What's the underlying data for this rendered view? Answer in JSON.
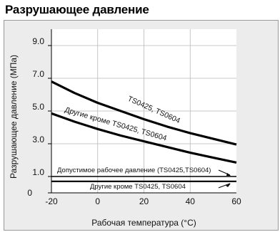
{
  "title": "Разрушающее давление",
  "chart_data": {
    "type": "line",
    "xlabel": "Рабочая температура (°C)",
    "ylabel": "Разрушающее давление (МПа)",
    "xlim": [
      -20,
      60
    ],
    "ylim": [
      0,
      10
    ],
    "x_ticks": [
      -20,
      0,
      20,
      40,
      60
    ],
    "x_tick_labels": [
      "-20",
      "0",
      "20",
      "40",
      "60"
    ],
    "y_ticks": [
      1.0,
      3.0,
      5.0,
      7.0,
      9.0
    ],
    "y_tick_labels": [
      "1.0",
      "3.0",
      "5.0",
      "7.0",
      "9.0"
    ],
    "y_zero_label": "0",
    "grid": true,
    "series": [
      {
        "name": "TS0425, TS0604",
        "x": [
          -20,
          -10,
          0,
          10,
          20,
          30,
          40,
          50,
          60
        ],
        "y": [
          6.8,
          6.1,
          5.5,
          5.0,
          4.5,
          4.05,
          3.65,
          3.3,
          2.95
        ]
      },
      {
        "name": "Другие кроме TS0425, TS0604",
        "x": [
          -20,
          -10,
          0,
          10,
          20,
          30,
          40,
          50,
          60
        ],
        "y": [
          4.85,
          4.35,
          3.9,
          3.5,
          3.15,
          2.8,
          2.45,
          2.15,
          1.85
        ]
      },
      {
        "name": "Допустимое рабочее давление (TS0425,TS0604)",
        "x": [
          -20,
          60
        ],
        "y": [
          1.0,
          1.0
        ]
      },
      {
        "name": "Другие кроме TS0425, TS0604",
        "x": [
          -20,
          60
        ],
        "y": [
          0.7,
          0.7
        ]
      }
    ],
    "annotations": [
      "TS0425, TS0604",
      "Другие кроме TS0425, TS0604",
      "Допустимое рабочее давление (TS0425,TS0604)",
      "Другие кроме TS0425, TS0604"
    ]
  }
}
